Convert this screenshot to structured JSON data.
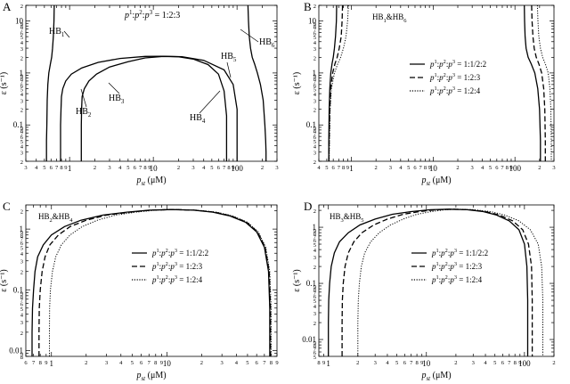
{
  "figure": {
    "shared_ylabel": "ε (s⁻¹)",
    "shared_xlabel": "p",
    "xlabel_sub": "st",
    "xlabel_unit": " (μM)"
  },
  "chart_data": [
    {
      "panel": "A",
      "type": "line",
      "xscale": "log",
      "yscale": "log",
      "xlim": [
        0.3,
        300
      ],
      "ylim": [
        0.02,
        20
      ],
      "annotation": "p¹:p²:p³ = 1:2:3",
      "x_major_ticks": [
        "1",
        "10",
        "100"
      ],
      "y_major_ticks": [
        "0.1",
        "1",
        "10"
      ],
      "x_minor_ticks": [
        "3",
        "4",
        "5",
        "6",
        "7",
        "2",
        "3",
        "4",
        "5",
        "6",
        "7",
        "2",
        "3",
        "4",
        "5",
        "6",
        "7",
        "2",
        "3"
      ],
      "series": [
        {
          "name": "HB1",
          "style": "solid",
          "x": [
            0.655,
            0.65,
            0.64,
            0.625,
            0.61,
            0.59,
            0.565,
            0.55,
            0.54,
            0.535,
            0.53,
            0.53
          ],
          "y": [
            20,
            10,
            5,
            3,
            2,
            1.5,
            1,
            0.6,
            0.3,
            0.1,
            0.05,
            0.02
          ]
        },
        {
          "name": "HB2",
          "style": "solid",
          "x": [
            0.78,
            0.78,
            0.78,
            0.79,
            0.8,
            0.83,
            0.9,
            1.05,
            1.4,
            2.2,
            4,
            8,
            13,
            22,
            40,
            70,
            90,
            100,
            100
          ],
          "y": [
            0.02,
            0.05,
            0.1,
            0.2,
            0.35,
            0.5,
            0.7,
            0.95,
            1.25,
            1.6,
            1.9,
            2.08,
            2.1,
            2.05,
            1.75,
            1.15,
            0.6,
            0.2,
            0.02
          ]
        },
        {
          "name": "HB3",
          "style": "solid",
          "x": [
            1.38,
            1.38,
            1.38,
            1.39,
            1.41,
            1.5,
            1.7,
            2.1,
            3,
            5,
            8,
            13,
            20,
            30,
            45,
            60,
            70,
            75,
            75
          ],
          "y": [
            0.02,
            0.05,
            0.1,
            0.2,
            0.35,
            0.5,
            0.7,
            0.95,
            1.3,
            1.65,
            1.95,
            2.08,
            2.05,
            1.85,
            1.45,
            0.95,
            0.45,
            0.15,
            0.02
          ]
        },
        {
          "name": "HB4",
          "style": "solid",
          "x": [
            70,
            72
          ],
          "y": [
            0.5,
            0.45
          ]
        },
        {
          "name": "HB5",
          "style": "solid",
          "x": [
            88,
            90
          ],
          "y": [
            1.0,
            0.9
          ]
        },
        {
          "name": "HB6",
          "style": "solid",
          "x": [
            135,
            137,
            140,
            145,
            152,
            162,
            175,
            190,
            205,
            215,
            220,
            222,
            222
          ],
          "y": [
            20,
            10,
            5,
            3,
            2,
            1.5,
            1,
            0.6,
            0.3,
            0.1,
            0.05,
            0.03,
            0.02
          ]
        }
      ],
      "labels": [
        "HB1",
        "HB2",
        "HB3",
        "HB4",
        "HB5",
        "HB6"
      ]
    },
    {
      "panel": "B",
      "type": "line",
      "xscale": "log",
      "yscale": "log",
      "xlim": [
        0.4,
        300
      ],
      "ylim": [
        0.02,
        20
      ],
      "title": "HB1&HB6",
      "x_major_ticks": [
        "1",
        "10",
        "100"
      ],
      "y_major_ticks": [
        "0.1",
        "1",
        "10"
      ],
      "legend": [
        "p¹:p²:p³ = 1:1/2:2",
        "p¹:p²:p³ = 1:2:3",
        "p¹:p²:p³ = 1:2:4"
      ],
      "series": [
        {
          "name": "1:1/2:2",
          "style": "solid",
          "x": [
            0.66,
            0.655,
            0.64,
            0.62,
            0.6,
            0.58,
            0.56,
            0.545,
            0.535,
            0.53,
            0.53
          ],
          "y": [
            20,
            10,
            5,
            3,
            2,
            1.5,
            1,
            0.5,
            0.2,
            0.05,
            0.02
          ]
        },
        {
          "name": "1:2:3",
          "style": "dashed",
          "x": [
            0.78,
            0.77,
            0.75,
            0.71,
            0.67,
            0.63,
            0.59,
            0.56,
            0.545,
            0.535,
            0.53
          ],
          "y": [
            20,
            10,
            5,
            3,
            2,
            1.5,
            1,
            0.5,
            0.2,
            0.05,
            0.02
          ]
        },
        {
          "name": "1:2:4",
          "style": "dotted",
          "x": [
            0.92,
            0.9,
            0.86,
            0.8,
            0.74,
            0.68,
            0.62,
            0.57,
            0.55,
            0.54,
            0.535
          ],
          "y": [
            20,
            10,
            5,
            3,
            2,
            1.5,
            1,
            0.5,
            0.2,
            0.05,
            0.02
          ]
        },
        {
          "name": "1:1/2:2 right",
          "style": "solid",
          "x": [
            130,
            131,
            133,
            137,
            145,
            158,
            175,
            190,
            200,
            205,
            205
          ],
          "y": [
            20,
            10,
            5,
            3,
            2,
            1.5,
            1,
            0.5,
            0.2,
            0.05,
            0.02
          ]
        },
        {
          "name": "1:2:3 right",
          "style": "dashed",
          "x": [
            160,
            162,
            166,
            172,
            182,
            196,
            212,
            225,
            232,
            235,
            235
          ],
          "y": [
            20,
            10,
            5,
            3,
            2,
            1.5,
            1,
            0.5,
            0.2,
            0.05,
            0.02
          ]
        },
        {
          "name": "1:2:4 right",
          "style": "dotted",
          "x": [
            188,
            191,
            196,
            205,
            218,
            235,
            255,
            268,
            275,
            278,
            278
          ],
          "y": [
            20,
            10,
            5,
            3,
            2,
            1.5,
            1,
            0.5,
            0.2,
            0.05,
            0.02
          ]
        }
      ]
    },
    {
      "panel": "C",
      "type": "line",
      "xscale": "log",
      "yscale": "log",
      "xlim": [
        0.6,
        90
      ],
      "ylim": [
        0.008,
        2.5
      ],
      "title": "HB2&HB4",
      "x_major_ticks": [
        "1",
        "10"
      ],
      "y_major_ticks": [
        "0.01",
        "0.1",
        "1"
      ],
      "legend": [
        "p¹:p²:p³ = 1:1/2:2",
        "p¹:p²:p³ = 1:2:3",
        "p¹:p²:p³ = 1:2:4"
      ],
      "series": [
        {
          "name": "1:1/2:2",
          "style": "solid",
          "x": [
            0.68,
            0.68,
            0.685,
            0.7,
            0.72,
            0.76,
            0.85,
            1.0,
            1.3,
            1.8,
            2.8,
            4.5,
            7,
            11,
            17,
            25,
            35,
            48,
            60,
            70,
            76,
            78,
            78
          ],
          "y": [
            0.008,
            0.02,
            0.05,
            0.1,
            0.2,
            0.35,
            0.55,
            0.8,
            1.1,
            1.4,
            1.7,
            1.9,
            2.05,
            2.1,
            2.05,
            1.9,
            1.65,
            1.3,
            0.9,
            0.5,
            0.2,
            0.05,
            0.008
          ]
        },
        {
          "name": "1:2:3",
          "style": "dashed",
          "x": [
            0.78,
            0.78,
            0.785,
            0.8,
            0.83,
            0.88,
            0.97,
            1.15,
            1.45,
            2.0,
            3.0,
            4.8,
            7.3,
            11.5,
            17.5,
            26,
            36,
            49,
            61,
            71,
            77,
            79,
            79
          ],
          "y": [
            0.008,
            0.02,
            0.05,
            0.1,
            0.2,
            0.35,
            0.55,
            0.8,
            1.1,
            1.4,
            1.7,
            1.9,
            2.05,
            2.1,
            2.05,
            1.9,
            1.65,
            1.3,
            0.9,
            0.5,
            0.2,
            0.05,
            0.008
          ]
        },
        {
          "name": "1:2:4",
          "style": "dotted",
          "x": [
            0.96,
            0.96,
            0.965,
            0.98,
            1.02,
            1.09,
            1.22,
            1.45,
            1.85,
            2.5,
            3.6,
            5.4,
            8,
            12.2,
            18.5,
            27,
            37,
            50,
            62,
            72,
            78,
            80,
            80
          ],
          "y": [
            0.008,
            0.02,
            0.05,
            0.1,
            0.2,
            0.35,
            0.55,
            0.8,
            1.1,
            1.4,
            1.7,
            1.9,
            2.05,
            2.1,
            2.05,
            1.9,
            1.65,
            1.3,
            0.9,
            0.5,
            0.2,
            0.05,
            0.008
          ]
        }
      ]
    },
    {
      "panel": "D",
      "type": "line",
      "xscale": "log",
      "yscale": "log",
      "xlim": [
        0.8,
        200
      ],
      "ylim": [
        0.005,
        2.5
      ],
      "title": "HB3&HB5",
      "x_major_ticks": [
        "1",
        "10",
        "100"
      ],
      "y_major_ticks": [
        "0.01",
        "0.1",
        "1"
      ],
      "legend": [
        "p¹:p²:p³ = 1:1/2:2",
        "p¹:p²:p³ = 1:2:3",
        "p¹:p²:p³ = 1:2:4"
      ],
      "series": [
        {
          "name": "1:1/2:2",
          "style": "solid",
          "x": [
            1.0,
            1.0,
            1.01,
            1.03,
            1.07,
            1.15,
            1.3,
            1.6,
            2.1,
            3,
            4.5,
            7,
            11,
            17,
            26,
            38,
            52,
            70,
            88,
            100,
            106,
            108,
            108
          ],
          "y": [
            0.005,
            0.02,
            0.05,
            0.1,
            0.2,
            0.35,
            0.55,
            0.8,
            1.1,
            1.4,
            1.7,
            1.9,
            2.05,
            2.1,
            2.05,
            1.9,
            1.65,
            1.3,
            0.9,
            0.5,
            0.2,
            0.05,
            0.005
          ]
        },
        {
          "name": "1:2:3",
          "style": "dashed",
          "x": [
            1.38,
            1.38,
            1.39,
            1.42,
            1.48,
            1.6,
            1.82,
            2.2,
            2.9,
            4,
            5.8,
            8.5,
            12.5,
            18.5,
            27.5,
            40,
            56,
            76,
            96,
            110,
            118,
            120,
            120
          ],
          "y": [
            0.005,
            0.02,
            0.05,
            0.1,
            0.2,
            0.35,
            0.55,
            0.8,
            1.1,
            1.4,
            1.7,
            1.9,
            2.05,
            2.1,
            2.05,
            1.9,
            1.65,
            1.3,
            0.9,
            0.5,
            0.2,
            0.05,
            0.005
          ]
        },
        {
          "name": "1:2:4",
          "style": "dotted",
          "x": [
            2.0,
            2.0,
            2.02,
            2.07,
            2.17,
            2.35,
            2.7,
            3.3,
            4.3,
            5.8,
            8,
            11.2,
            15.5,
            21.5,
            31,
            45,
            63,
            88,
            115,
            138,
            150,
            154,
            154
          ],
          "y": [
            0.005,
            0.02,
            0.05,
            0.1,
            0.2,
            0.35,
            0.55,
            0.8,
            1.1,
            1.4,
            1.7,
            1.9,
            2.05,
            2.1,
            2.05,
            1.9,
            1.65,
            1.3,
            0.9,
            0.5,
            0.2,
            0.05,
            0.005
          ]
        }
      ]
    }
  ]
}
